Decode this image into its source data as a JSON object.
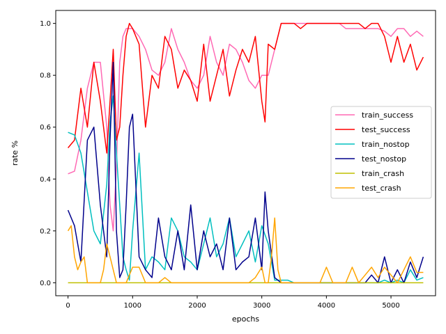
{
  "chart_data": {
    "type": "line",
    "title": "",
    "xlabel": "epochs",
    "ylabel": "rate %",
    "xlim": [
      -190,
      5690
    ],
    "ylim": [
      -0.05,
      1.05
    ],
    "xticks": [
      0,
      1000,
      2000,
      3000,
      4000,
      5000
    ],
    "yticks": [
      0.0,
      0.2,
      0.4,
      0.6,
      0.8,
      1.0
    ],
    "xtick_labels": [
      "0",
      "1000",
      "2000",
      "3000",
      "4000",
      "5000"
    ],
    "ytick_labels": [
      "0.0",
      "0.2",
      "0.4",
      "0.6",
      "0.8",
      "1.0"
    ],
    "grid": false,
    "legend_position": "center-right",
    "series": [
      {
        "name": "train_success",
        "color": "#ff69b4",
        "x": [
          0,
          100,
          200,
          300,
          400,
          500,
          600,
          650,
          700,
          750,
          800,
          850,
          900,
          950,
          1000,
          1100,
          1200,
          1300,
          1400,
          1500,
          1600,
          1700,
          1800,
          1900,
          2000,
          2100,
          2200,
          2300,
          2400,
          2500,
          2600,
          2700,
          2800,
          2900,
          3000,
          3100,
          3200,
          3300,
          3400,
          3500,
          3600,
          3700,
          3800,
          3900,
          4000,
          4100,
          4200,
          4300,
          4400,
          4500,
          4600,
          4700,
          4800,
          4900,
          5000,
          5100,
          5200,
          5300,
          5400,
          5500
        ],
        "values": [
          0.42,
          0.43,
          0.55,
          0.75,
          0.85,
          0.85,
          0.6,
          0.3,
          0.2,
          0.45,
          0.85,
          0.95,
          0.98,
          0.98,
          0.98,
          0.95,
          0.9,
          0.82,
          0.8,
          0.85,
          0.98,
          0.9,
          0.85,
          0.78,
          0.75,
          0.8,
          0.95,
          0.85,
          0.8,
          0.92,
          0.9,
          0.85,
          0.78,
          0.75,
          0.8,
          0.8,
          0.9,
          1.0,
          1.0,
          1.0,
          1.0,
          1.0,
          1.0,
          1.0,
          1.0,
          1.0,
          1.0,
          0.98,
          0.98,
          0.98,
          0.98,
          0.98,
          0.98,
          0.97,
          0.95,
          0.98,
          0.98,
          0.95,
          0.97,
          0.95
        ]
      },
      {
        "name": "test_success",
        "color": "#ff0000",
        "x": [
          0,
          100,
          200,
          300,
          400,
          500,
          600,
          650,
          700,
          750,
          800,
          850,
          900,
          950,
          1000,
          1100,
          1200,
          1300,
          1400,
          1500,
          1600,
          1700,
          1800,
          1900,
          2000,
          2100,
          2200,
          2300,
          2400,
          2500,
          2600,
          2700,
          2800,
          2900,
          3000,
          3050,
          3100,
          3200,
          3300,
          3400,
          3500,
          3600,
          3700,
          3800,
          3900,
          4000,
          4100,
          4200,
          4300,
          4400,
          4500,
          4600,
          4700,
          4800,
          4900,
          5000,
          5100,
          5200,
          5300,
          5400,
          5500
        ],
        "values": [
          0.52,
          0.55,
          0.75,
          0.6,
          0.85,
          0.7,
          0.5,
          0.7,
          0.9,
          0.55,
          0.6,
          0.8,
          0.95,
          1.0,
          0.98,
          0.92,
          0.6,
          0.8,
          0.75,
          0.95,
          0.9,
          0.75,
          0.82,
          0.78,
          0.7,
          0.92,
          0.7,
          0.8,
          0.9,
          0.72,
          0.82,
          0.9,
          0.85,
          0.95,
          0.7,
          0.62,
          0.92,
          0.9,
          1.0,
          1.0,
          1.0,
          0.98,
          1.0,
          1.0,
          1.0,
          1.0,
          1.0,
          1.0,
          1.0,
          1.0,
          1.0,
          0.98,
          1.0,
          1.0,
          0.95,
          0.85,
          0.95,
          0.85,
          0.92,
          0.82,
          0.87
        ]
      },
      {
        "name": "train_nostop",
        "color": "#00bfbf",
        "x": [
          0,
          100,
          200,
          300,
          400,
          500,
          600,
          650,
          700,
          750,
          800,
          850,
          900,
          950,
          1000,
          1100,
          1200,
          1300,
          1400,
          1500,
          1600,
          1700,
          1800,
          1900,
          2000,
          2100,
          2200,
          2300,
          2400,
          2500,
          2600,
          2700,
          2800,
          2900,
          3000,
          3100,
          3200,
          3300,
          3400,
          3500,
          3600,
          3700,
          3800,
          3900,
          4000,
          4100,
          4200,
          4300,
          4400,
          4500,
          4600,
          4700,
          4800,
          4900,
          5000,
          5100,
          5200,
          5300,
          5400,
          5500
        ],
        "values": [
          0.58,
          0.57,
          0.5,
          0.35,
          0.2,
          0.15,
          0.38,
          0.62,
          0.72,
          0.5,
          0.3,
          0.1,
          0.05,
          0.01,
          0.2,
          0.5,
          0.05,
          0.1,
          0.08,
          0.05,
          0.25,
          0.2,
          0.1,
          0.08,
          0.05,
          0.15,
          0.25,
          0.1,
          0.15,
          0.25,
          0.1,
          0.15,
          0.2,
          0.08,
          0.22,
          0.15,
          0.01,
          0.01,
          0.01,
          0.0,
          0.0,
          0.0,
          0.0,
          0.0,
          0.0,
          0.0,
          0.0,
          0.0,
          0.0,
          0.0,
          0.0,
          0.0,
          0.0,
          0.01,
          0.0,
          0.01,
          0.0,
          0.05,
          0.01,
          0.02
        ]
      },
      {
        "name": "test_nostop",
        "color": "#00008b",
        "x": [
          0,
          100,
          200,
          300,
          400,
          500,
          600,
          650,
          700,
          750,
          800,
          850,
          900,
          950,
          1000,
          1100,
          1200,
          1300,
          1400,
          1500,
          1600,
          1700,
          1800,
          1900,
          2000,
          2100,
          2200,
          2300,
          2400,
          2500,
          2600,
          2700,
          2800,
          2900,
          3000,
          3050,
          3100,
          3200,
          3300,
          3400,
          3500,
          3600,
          3700,
          3800,
          3900,
          4000,
          4100,
          4200,
          4300,
          4400,
          4500,
          4600,
          4700,
          4800,
          4900,
          5000,
          5100,
          5200,
          5300,
          5400,
          5500
        ],
        "values": [
          0.28,
          0.22,
          0.08,
          0.55,
          0.6,
          0.3,
          0.1,
          0.55,
          0.85,
          0.2,
          0.02,
          0.05,
          0.3,
          0.6,
          0.65,
          0.1,
          0.05,
          0.02,
          0.25,
          0.1,
          0.05,
          0.2,
          0.05,
          0.3,
          0.05,
          0.2,
          0.1,
          0.15,
          0.05,
          0.25,
          0.05,
          0.08,
          0.1,
          0.25,
          0.05,
          0.35,
          0.2,
          0.02,
          0.0,
          0.0,
          0.0,
          0.0,
          0.0,
          0.0,
          0.0,
          0.0,
          0.0,
          0.0,
          0.0,
          0.0,
          0.0,
          0.0,
          0.03,
          0.0,
          0.1,
          0.0,
          0.05,
          0.0,
          0.08,
          0.02,
          0.1
        ]
      },
      {
        "name": "train_crash",
        "color": "#bfbf00",
        "x": [
          0,
          500,
          1000,
          1500,
          2000,
          2500,
          3000,
          3500,
          4000,
          4500,
          5000,
          5500
        ],
        "values": [
          0.0,
          0.0,
          0.0,
          0.0,
          0.0,
          0.0,
          0.0,
          0.0,
          0.0,
          0.0,
          0.0,
          0.0
        ]
      },
      {
        "name": "test_crash",
        "color": "#ffa500",
        "x": [
          0,
          50,
          100,
          150,
          200,
          250,
          300,
          350,
          400,
          500,
          550,
          600,
          650,
          700,
          750,
          800,
          900,
          1000,
          1100,
          1200,
          1300,
          1400,
          1500,
          1600,
          1700,
          1800,
          1900,
          2000,
          2100,
          2200,
          2300,
          2400,
          2500,
          2600,
          2700,
          2800,
          2900,
          3000,
          3050,
          3100,
          3150,
          3200,
          3250,
          3300,
          3400,
          3500,
          3600,
          3700,
          3800,
          3900,
          4000,
          4100,
          4200,
          4300,
          4400,
          4500,
          4600,
          4700,
          4800,
          4900,
          5000,
          5100,
          5200,
          5300,
          5400,
          5500
        ],
        "values": [
          0.2,
          0.22,
          0.1,
          0.05,
          0.08,
          0.1,
          0.0,
          0.0,
          0.0,
          0.0,
          0.05,
          0.15,
          0.1,
          0.05,
          0.0,
          0.0,
          0.0,
          0.06,
          0.06,
          0.0,
          0.0,
          0.0,
          0.02,
          0.0,
          0.0,
          0.0,
          0.0,
          0.0,
          0.0,
          0.0,
          0.0,
          0.0,
          0.0,
          0.0,
          0.0,
          0.0,
          0.02,
          0.06,
          0.0,
          0.0,
          0.1,
          0.25,
          0.05,
          0.0,
          0.0,
          0.0,
          0.0,
          0.0,
          0.0,
          0.0,
          0.06,
          0.0,
          0.0,
          0.0,
          0.06,
          0.0,
          0.03,
          0.06,
          0.02,
          0.06,
          0.03,
          0.0,
          0.05,
          0.1,
          0.04,
          0.04
        ]
      }
    ]
  }
}
